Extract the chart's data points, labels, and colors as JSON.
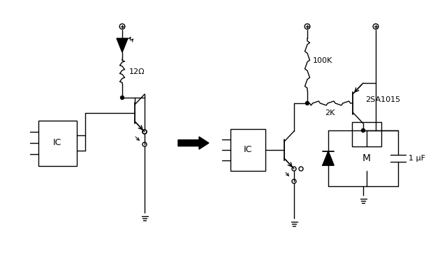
{
  "bg_color": "#ffffff",
  "line_color": "#000000",
  "text_color": "#000000",
  "figsize": [
    6.4,
    4.0
  ],
  "dpi": 100,
  "labels": {
    "ic1": "IC",
    "ic2": "IC",
    "r1": "12Ω",
    "r2": "100K",
    "r3": "2K",
    "transistor2": "2SA1015",
    "motor": "M",
    "cap": "1 μF"
  }
}
